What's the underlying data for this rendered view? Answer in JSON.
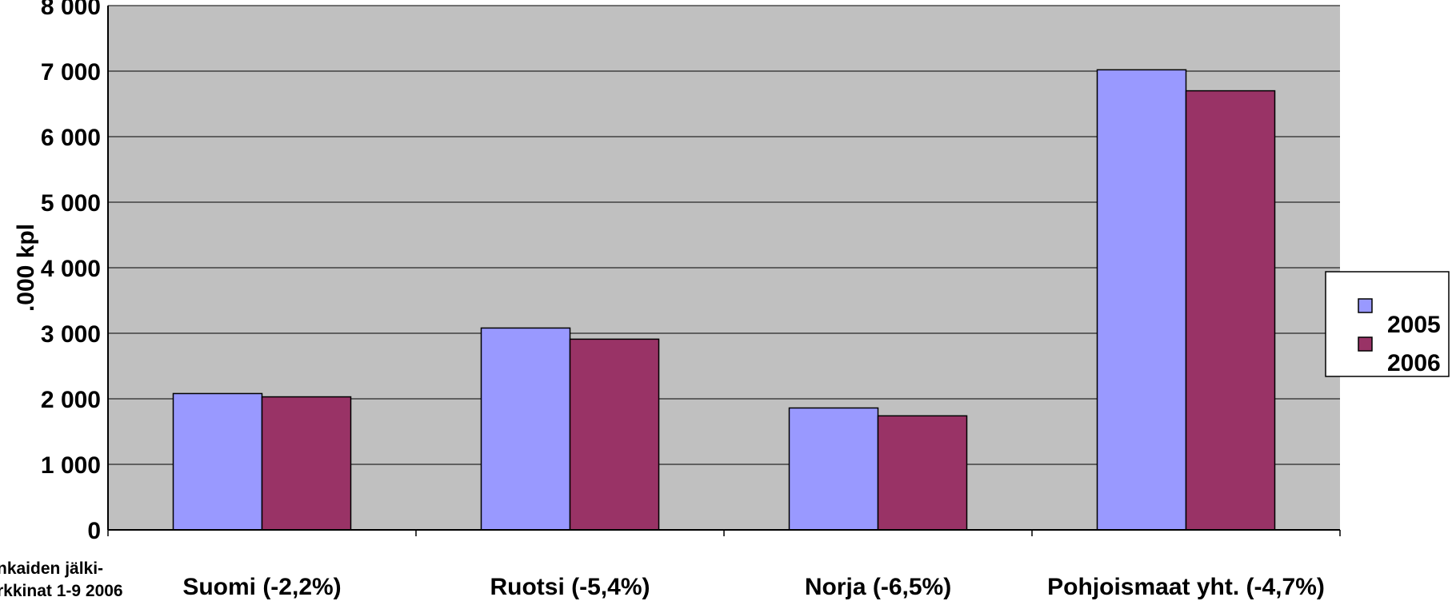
{
  "chart_data": {
    "type": "bar",
    "categories": [
      "Suomi (-2,2%)",
      "Ruotsi (-5,4%)",
      "Norja (-6,5%)",
      "Pohjoismaat yht. (-4,7%)"
    ],
    "series": [
      {
        "name": "2005",
        "values": [
          2080,
          3080,
          1860,
          7020
        ]
      },
      {
        "name": "2006",
        "values": [
          2030,
          2910,
          1740,
          6700
        ]
      }
    ],
    "ylabel": ".000 kpl",
    "ylim": [
      0,
      8000
    ],
    "ytick_step": 1000,
    "ytick_labels": [
      "0",
      "1 000",
      "2 000",
      "3 000",
      "4 000",
      "5 000",
      "6 000",
      "7 000",
      "8 000"
    ],
    "grid": true,
    "legend": "right",
    "note_lines": [
      "nkaiden jälki-",
      "rkkinat 1-9 2006"
    ],
    "colors": {
      "plot_bg": "#c0c0c0",
      "series_2005": "#9999ff",
      "series_2006": "#993366",
      "gridline": "#000000"
    }
  }
}
